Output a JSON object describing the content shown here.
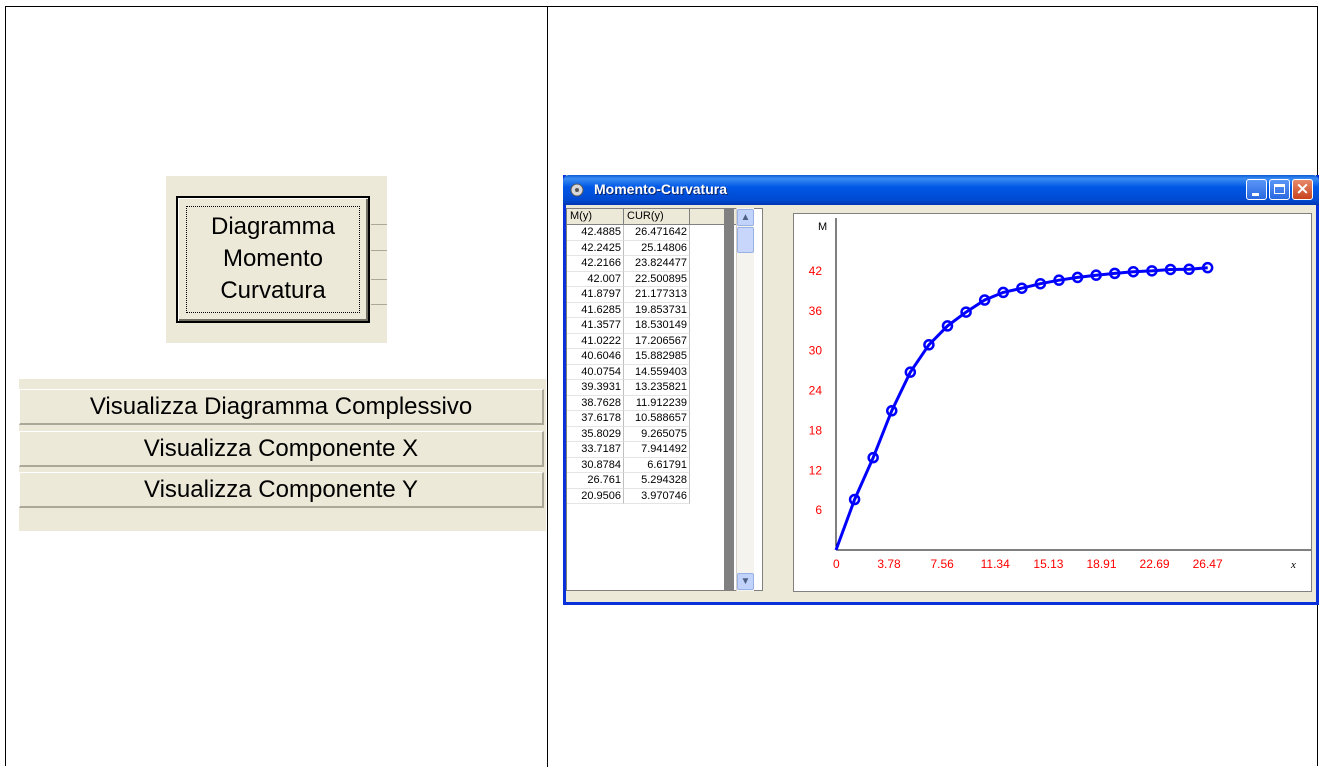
{
  "left_panel": {
    "button_diagram": {
      "lines": [
        "Diagramma",
        "Momento",
        "Curvatura"
      ]
    },
    "list_buttons": [
      "Visualizza Diagramma Complessivo",
      "Visualizza Componente X",
      "Visualizza Componente Y"
    ]
  },
  "window": {
    "title": "Momento-Curvatura",
    "close_glyph": "×",
    "scroll_up_glyph": "▲",
    "scroll_down_glyph": "▼"
  },
  "table": {
    "headers": [
      "M(y)",
      "CUR(y)"
    ],
    "rows": [
      [
        "42.4885",
        "26.471642"
      ],
      [
        "42.2425",
        "25.14806"
      ],
      [
        "42.2166",
        "23.824477"
      ],
      [
        "42.007",
        "22.500895"
      ],
      [
        "41.8797",
        "21.177313"
      ],
      [
        "41.6285",
        "19.853731"
      ],
      [
        "41.3577",
        "18.530149"
      ],
      [
        "41.0222",
        "17.206567"
      ],
      [
        "40.6046",
        "15.882985"
      ],
      [
        "40.0754",
        "14.559403"
      ],
      [
        "39.3931",
        "13.235821"
      ],
      [
        "38.7628",
        "11.912239"
      ],
      [
        "37.6178",
        "10.588657"
      ],
      [
        "35.8029",
        "9.265075"
      ],
      [
        "33.7187",
        "7.941492"
      ],
      [
        "30.8784",
        "6.61791"
      ],
      [
        "26.761",
        "5.294328"
      ],
      [
        "20.9506",
        "3.970746"
      ]
    ]
  },
  "chart_data": {
    "type": "line",
    "ylabel": "M",
    "xlabel": "x",
    "yticks": [
      "6",
      "12",
      "18",
      "24",
      "30",
      "36",
      "42"
    ],
    "xticks": [
      "0",
      "3.78",
      "7.56",
      "11.34",
      "15.13",
      "18.91",
      "22.69",
      "26.47"
    ],
    "xlim": [
      0,
      30.2
    ],
    "ylim": [
      0,
      46.5
    ],
    "line_color": "#0000ff",
    "tick_color": "#ff0000",
    "series": [
      {
        "x": [
          0,
          1.323582,
          2.647164,
          3.970746,
          5.294328,
          6.61791,
          7.941492,
          9.265075,
          10.588657,
          11.912239,
          13.235821,
          14.559403,
          15.882985,
          17.206567,
          18.530149,
          19.853731,
          21.177313,
          22.500895,
          23.824477,
          25.14806,
          26.471642
        ],
        "y": [
          0,
          7.6,
          13.9,
          20.9506,
          26.761,
          30.8784,
          33.7187,
          35.8029,
          37.6178,
          38.7628,
          39.3931,
          40.0754,
          40.6046,
          41.0222,
          41.3577,
          41.6285,
          41.8797,
          42.007,
          42.2166,
          42.2425,
          42.4885
        ]
      }
    ]
  }
}
